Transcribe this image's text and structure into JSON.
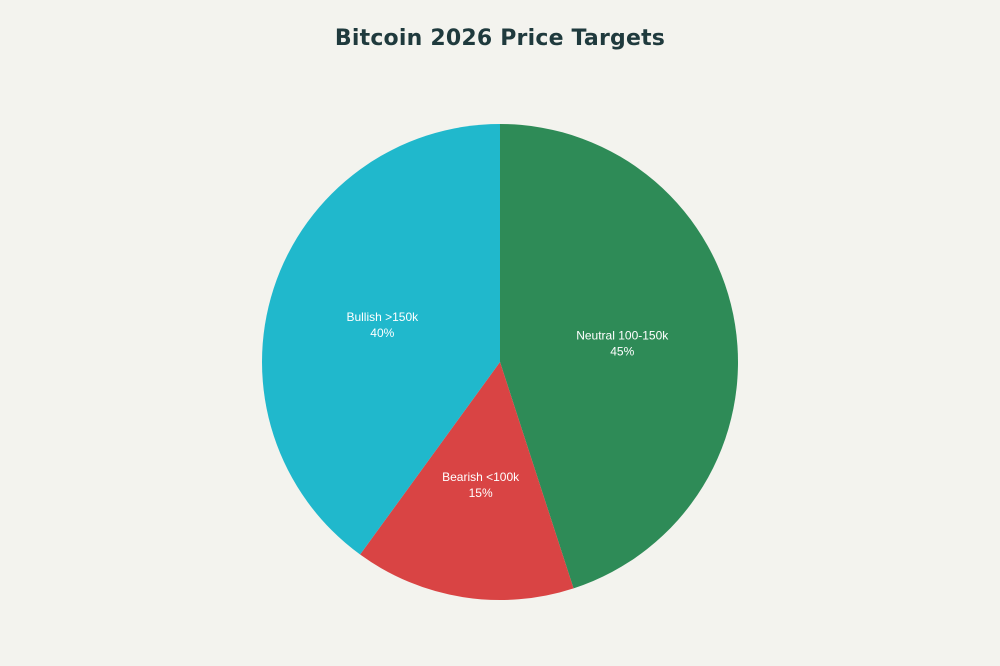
{
  "chart_data": {
    "type": "pie",
    "title": "Bitcoin 2026 Price Targets",
    "slices": [
      {
        "label": "Neutral 100-150k",
        "value": 45,
        "percent_label": "45%",
        "color": "#2e8b57"
      },
      {
        "label": "Bearish <100k",
        "value": 15,
        "percent_label": "15%",
        "color": "#d94444"
      },
      {
        "label": "Bullish >150k",
        "value": 40,
        "percent_label": "40%",
        "color": "#20b8cc"
      }
    ],
    "start_angle_deg": 0,
    "direction": "clockwise",
    "background": "#f3f3ee"
  }
}
